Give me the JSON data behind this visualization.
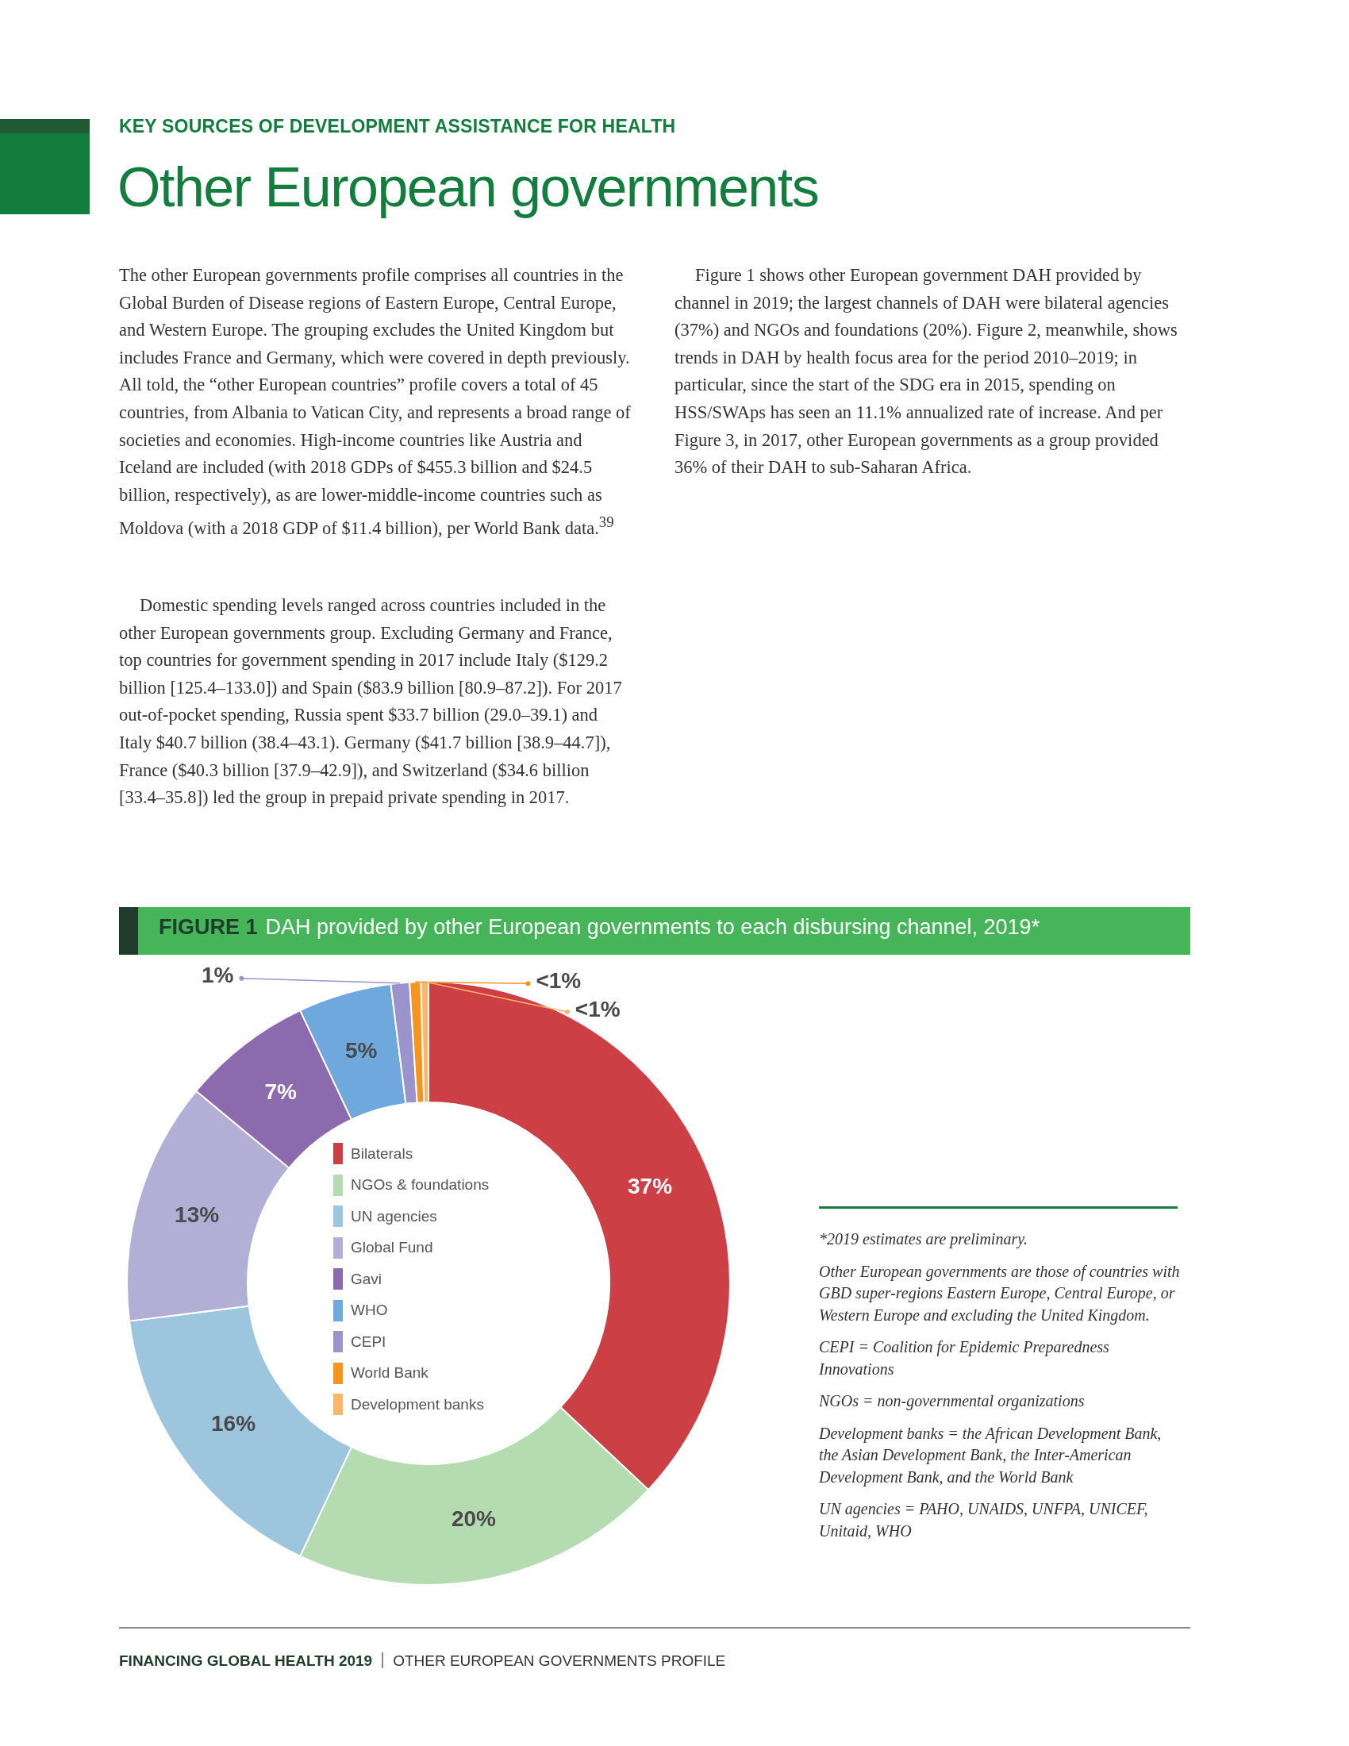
{
  "chart_data": {
    "type": "donut",
    "title": "DAH provided by other European governments to each disbursing channel, 2019*",
    "categories": [
      "Bilaterals",
      "NGOs & foundations",
      "UN agencies",
      "Global Fund",
      "Gavi",
      "WHO",
      "CEPI",
      "World Bank",
      "Development banks"
    ],
    "values": [
      37,
      20,
      16,
      13,
      7,
      5,
      1,
      0.6,
      0.4
    ],
    "value_labels": [
      "37%",
      "20%",
      "16%",
      "13%",
      "7%",
      "5%",
      "1%",
      "<1%",
      "<1%"
    ],
    "colors": [
      "#cc3f44",
      "#b5dcb0",
      "#9dc6de",
      "#b3aed6",
      "#8b6aad",
      "#6fa8dc",
      "#9b93cc",
      "#f7941d",
      "#fdb56a"
    ],
    "legend": "center",
    "annotations": [
      "KEY SOURCES OF DEVELOPMENT ASSISTANCE FOR HEALTH",
      "Other European governments",
      "The other European governments profile comprises all countries in the Global Burden of Disease regions of Eastern Europe, Central Europe, and Western Europe. The grouping excludes the United Kingdom but includes France and Germany, which were covered in depth previously. All told, the “other European countries” profile covers a total of 45 countries, from Albania to Vatican City, and represents a broad range of societies and economies. High-income countries like Austria and Iceland are included (with 2018 GDPs of $455.3 billion and $24.5 billion, respectively), as are lower-middle-income countries such as Moldova (with a 2018 GDP of $11.4 billion), per World Bank data.$^{39}$",
      "Domestic spending levels ranged across countries included in the other European governments group. Excluding Germany and France, top countries for government spending in 2017 include Italy ($129.2 billion [125.4–133.0]) and Spain ($83.9 billion [80.9–87.2]). For 2017 out-of-pocket spending, Russia spent $33.7 billion (29.0–39.1) and Italy $40.7 billion (38.4–43.1). Germany ($41.7 billion [38.9–44.7]), France ($40.3 billion [37.9–42.9]), and Switzerland ($34.6 billion [33.4–35.8]) led the group in prepaid private spending in 2017.",
      "Figure 1 shows other European government DAH provided by channel in 2019; the largest channels of DAH were bilateral agencies (37%) and NGOs and foundations (20%). Figure 2, meanwhile, shows trends in DAH by health focus area for the period 2010–2019; in particular, since the start of the SDG era in 2015, spending on HSS/SWAps has seen an 11.1% annualized rate of increase. And per Figure 3, in 2017, other European governments as a group provided 36% of their DAH to sub-Saharan Africa.",
      "FIGURE 1",
      "*2019 estimates are preliminary.",
      "Other European governments are those of countries with GBD super-regions Eastern Europe, Central Europe, or Western Europe and excluding the United Kingdom.",
      "CEPI = Coalition for Epidemic Preparedness Innovations",
      "NGOs = non-governmental organizations",
      "Development banks = the African Development Bank, the Asian Development Bank, the Inter-American Development Bank, and the World Bank",
      "UN agencies = PAHO, UNAIDS, UNFPA, UNICEF, Unitaid, WHO",
      "FINANCING GLOBAL HEALTH 2019",
      "OTHER EUROPEAN GOVERNMENTS PROFILE"
    ]
  }
}
